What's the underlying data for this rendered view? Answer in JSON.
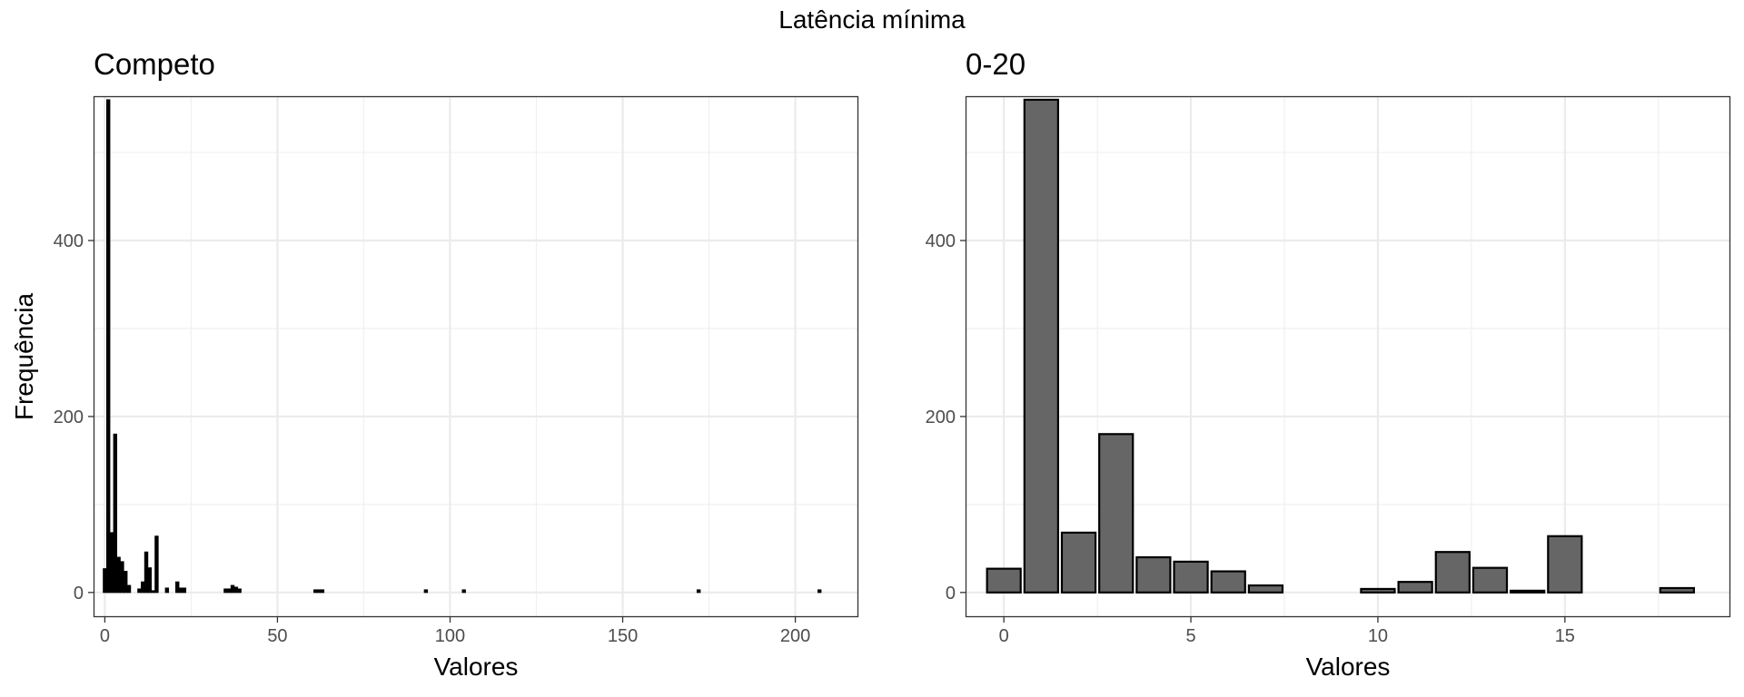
{
  "figure": {
    "title": "Latência mínima"
  },
  "chart_data": [
    {
      "type": "bar",
      "title": "Competo",
      "xlabel": "Valores",
      "ylabel": "Frequência",
      "xlim": [
        -3,
        218
      ],
      "ylim": [
        -27,
        563
      ],
      "xticks": [
        0,
        50,
        100,
        150,
        200
      ],
      "yticks": [
        0,
        200,
        400
      ],
      "grid": true,
      "bar_fill": "#000000",
      "bar_outline": "#000000",
      "bins": [
        {
          "x": 0,
          "y": 27
        },
        {
          "x": 1,
          "y": 560
        },
        {
          "x": 2,
          "y": 68
        },
        {
          "x": 3,
          "y": 180
        },
        {
          "x": 4,
          "y": 40
        },
        {
          "x": 5,
          "y": 35
        },
        {
          "x": 6,
          "y": 24
        },
        {
          "x": 7,
          "y": 8
        },
        {
          "x": 10,
          "y": 4
        },
        {
          "x": 11,
          "y": 12
        },
        {
          "x": 12,
          "y": 46
        },
        {
          "x": 13,
          "y": 28
        },
        {
          "x": 14,
          "y": 2
        },
        {
          "x": 15,
          "y": 64
        },
        {
          "x": 18,
          "y": 5
        },
        {
          "x": 21,
          "y": 12
        },
        {
          "x": 22,
          "y": 5
        },
        {
          "x": 23,
          "y": 5
        },
        {
          "x": 35,
          "y": 4
        },
        {
          "x": 36,
          "y": 4
        },
        {
          "x": 37,
          "y": 8
        },
        {
          "x": 38,
          "y": 6
        },
        {
          "x": 39,
          "y": 4
        },
        {
          "x": 61,
          "y": 3
        },
        {
          "x": 62,
          "y": 3
        },
        {
          "x": 63,
          "y": 3
        },
        {
          "x": 93,
          "y": 3
        },
        {
          "x": 104,
          "y": 3
        },
        {
          "x": 172,
          "y": 3
        },
        {
          "x": 207,
          "y": 3
        }
      ]
    },
    {
      "type": "bar",
      "title": "0-20",
      "xlabel": "Valores",
      "ylabel": "",
      "xlim": [
        -1,
        19.4
      ],
      "ylim": [
        -27,
        563
      ],
      "xticks": [
        0,
        5,
        10,
        15
      ],
      "yticks": [
        0,
        200,
        400
      ],
      "grid": true,
      "bar_fill": "#666666",
      "bar_outline": "#000000",
      "bins": [
        {
          "x": 0,
          "y": 27
        },
        {
          "x": 1,
          "y": 560
        },
        {
          "x": 2,
          "y": 68
        },
        {
          "x": 3,
          "y": 180
        },
        {
          "x": 4,
          "y": 40
        },
        {
          "x": 5,
          "y": 35
        },
        {
          "x": 6,
          "y": 24
        },
        {
          "x": 7,
          "y": 8
        },
        {
          "x": 10,
          "y": 4
        },
        {
          "x": 11,
          "y": 12
        },
        {
          "x": 12,
          "y": 46
        },
        {
          "x": 13,
          "y": 28
        },
        {
          "x": 14,
          "y": 2
        },
        {
          "x": 15,
          "y": 64
        },
        {
          "x": 18,
          "y": 5
        }
      ]
    }
  ]
}
